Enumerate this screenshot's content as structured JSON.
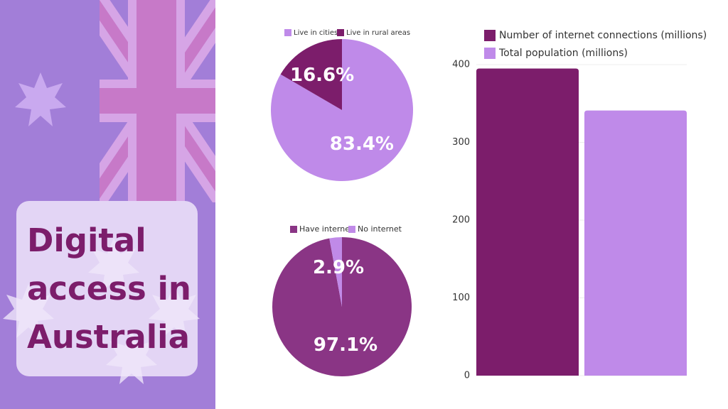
{
  "title": "Digital access in Australia",
  "chart_data": [
    {
      "type": "pie",
      "categories": [
        "Live in cities",
        "Live in rural areas"
      ],
      "values": [
        83.4,
        16.6
      ],
      "value_labels": [
        "83.4%",
        "16.6%"
      ],
      "colors": [
        "#bf8ae9",
        "#7c1d6b"
      ]
    },
    {
      "type": "pie",
      "categories": [
        "Have internet",
        "No internet"
      ],
      "values": [
        97.1,
        2.9
      ],
      "value_labels": [
        "97.1%",
        "2.9%"
      ],
      "colors": [
        "#8a3585",
        "#c08ae8"
      ]
    },
    {
      "type": "bar",
      "categories": [
        null
      ],
      "series": [
        {
          "name": "Number of internet connections (millions)",
          "color": "#7c1d6b",
          "values": [
            395
          ]
        },
        {
          "name": "Total population (millions)",
          "color": "#bf8ae9",
          "values": [
            341
          ]
        }
      ],
      "ylim": [
        0,
        400
      ],
      "yticks": [
        0,
        100,
        200,
        300,
        400
      ],
      "grid": true
    }
  ]
}
